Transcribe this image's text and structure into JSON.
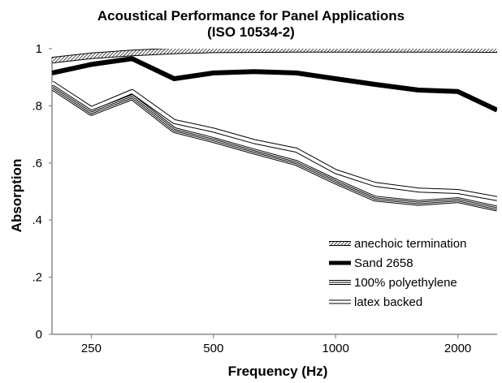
{
  "chart_data": {
    "type": "line",
    "title": "Acoustical Performance for Panel Applications",
    "subtitle": "(ISO 10534-2)",
    "xlabel": "Frequency (Hz)",
    "ylabel": "Absorption",
    "x_scale": "log",
    "xlim": [
      200,
      2500
    ],
    "ylim": [
      0,
      1
    ],
    "x_ticks": [
      250,
      500,
      1000,
      2000
    ],
    "x_tick_labels": [
      "250",
      "500",
      "1000",
      "2000"
    ],
    "y_ticks": [
      0,
      0.2,
      0.4,
      0.6,
      0.8,
      1.0
    ],
    "y_tick_labels": [
      "0",
      ".2",
      ".4",
      ".6",
      ".8",
      "1"
    ],
    "grid": false,
    "legend_position": "bottom-right",
    "x": [
      200,
      250,
      315,
      400,
      500,
      630,
      800,
      1000,
      1250,
      1600,
      2000,
      2500
    ],
    "series": [
      {
        "name": "anechoic termination",
        "style": "hatched",
        "values": [
          0.96,
          0.975,
          0.985,
          0.992,
          0.996,
          0.997,
          0.998,
          0.998,
          0.998,
          0.998,
          0.998,
          0.997
        ]
      },
      {
        "name": "Sand 2658",
        "style": "thick",
        "values": [
          0.915,
          0.945,
          0.965,
          0.895,
          0.915,
          0.92,
          0.915,
          0.895,
          0.875,
          0.855,
          0.85,
          0.785
        ]
      },
      {
        "name": "100% polyethylene",
        "style": "triple-line",
        "values": [
          0.865,
          0.775,
          0.83,
          0.715,
          0.68,
          0.64,
          0.6,
          0.535,
          0.475,
          0.46,
          0.47,
          0.44
        ]
      },
      {
        "name": "latex backed",
        "style": "double-line",
        "values": [
          0.88,
          0.79,
          0.85,
          0.745,
          0.715,
          0.675,
          0.645,
          0.57,
          0.525,
          0.505,
          0.5,
          0.475
        ]
      }
    ]
  }
}
